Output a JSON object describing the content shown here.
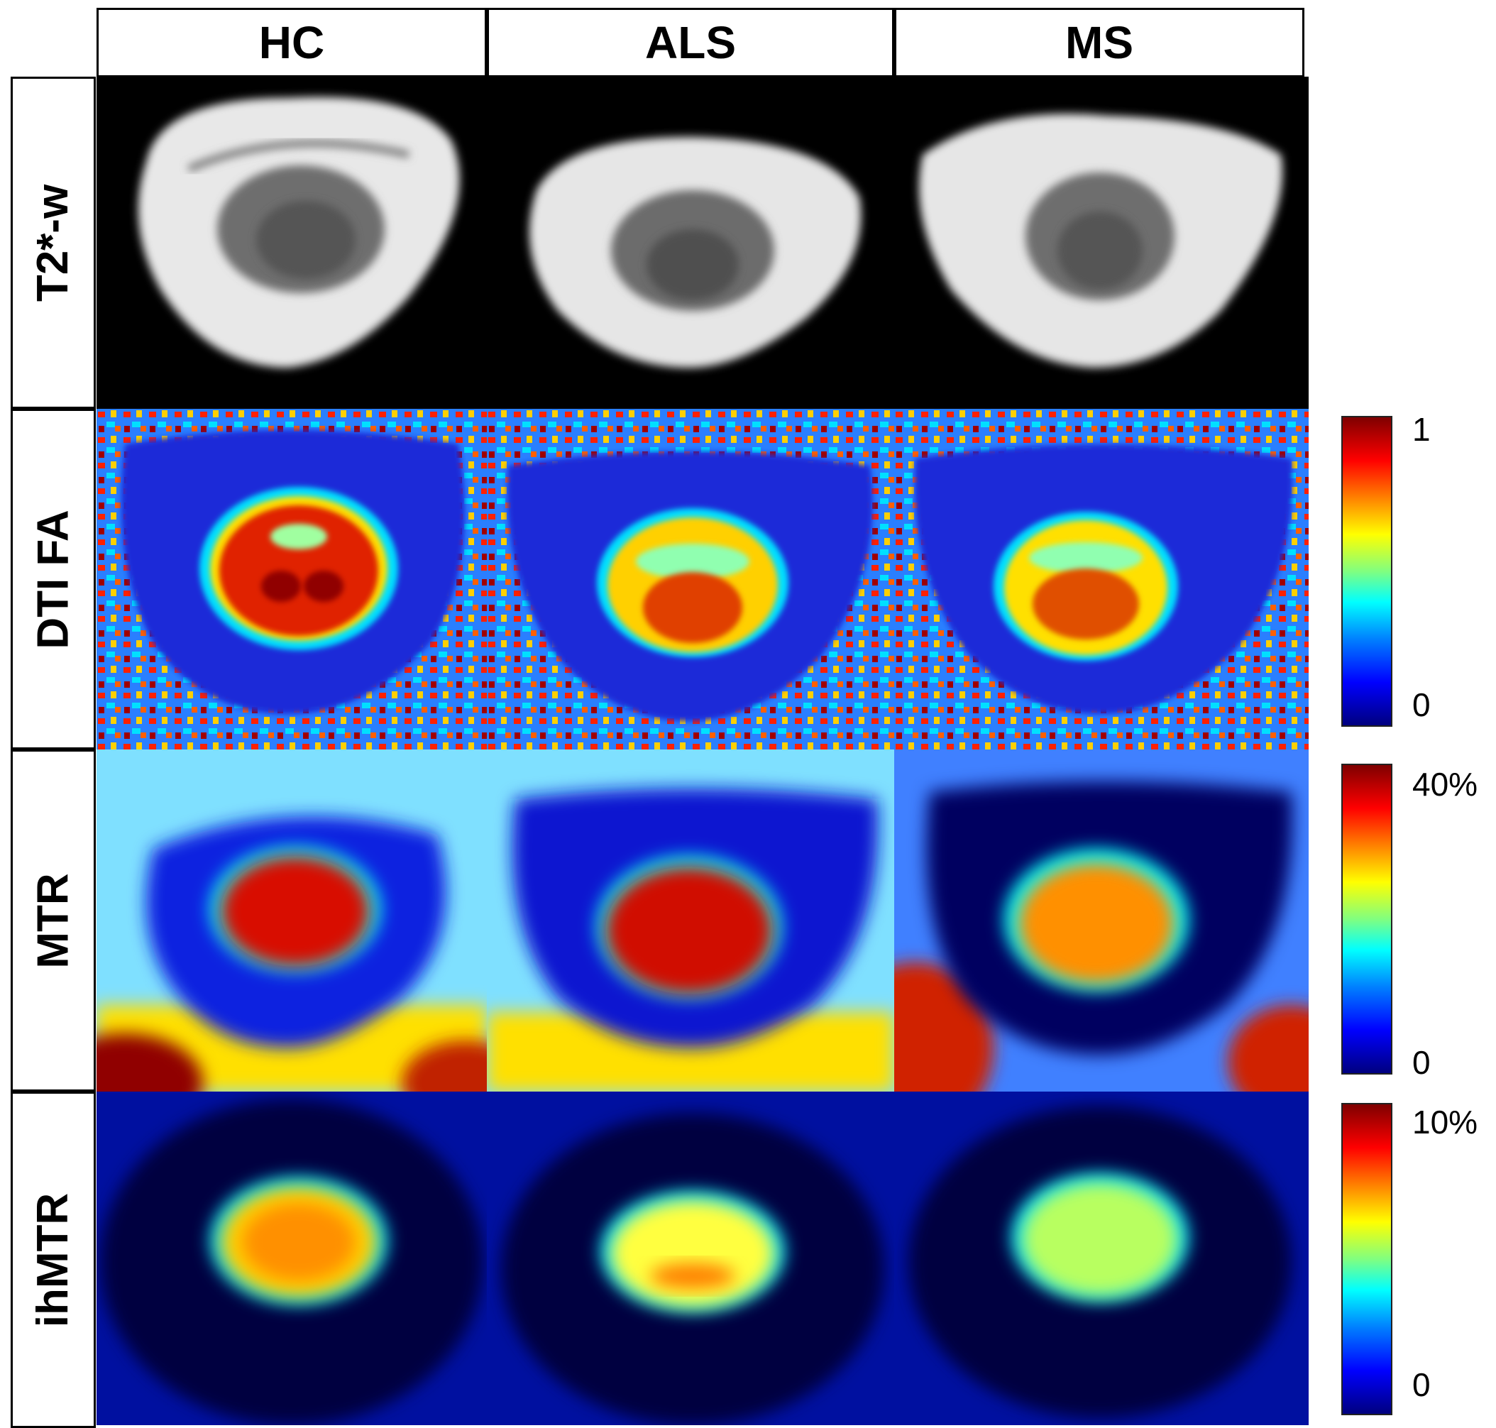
{
  "columns": [
    "HC",
    "ALS",
    "MS"
  ],
  "rows": [
    "T2*-w",
    "DTI FA",
    "MTR",
    "ihMTR"
  ],
  "colorbars": {
    "fa": {
      "max": "1",
      "min": "0"
    },
    "mtr": {
      "max": "40%",
      "min": "0"
    },
    "ihmtr": {
      "max": "10%",
      "min": "0"
    }
  },
  "colors": {
    "jet_dark_blue": "#00007f",
    "jet_blue": "#0000ff",
    "jet_cyan": "#00ffff",
    "jet_yellow": "#ffff00",
    "jet_red": "#ff0000",
    "jet_dark_red": "#7f0000"
  }
}
